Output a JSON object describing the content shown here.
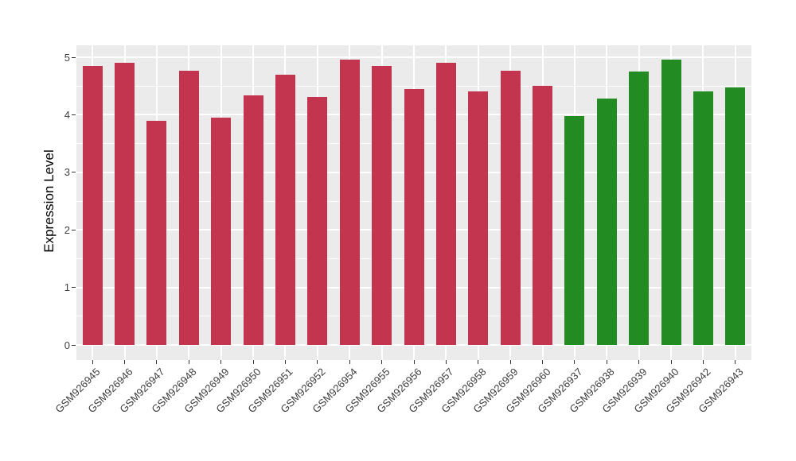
{
  "figure": {
    "background": "#FFFFFF",
    "panel_background": "#EBEBEB",
    "grid_color": "#FFFFFF",
    "axis_text_color": "#404040",
    "tick_mark_color": "#333333",
    "red_bar_color": "#C3344F",
    "green_bar_color": "#228B22"
  },
  "chart_data": {
    "type": "bar",
    "title": "",
    "xlabel": "",
    "ylabel": "Expression Level",
    "ylim": [
      -0.26,
      5.21
    ],
    "yticks": [
      0,
      1,
      2,
      3,
      4,
      5
    ],
    "yminorticks": [
      0.5,
      1.5,
      2.5,
      3.5,
      4.5
    ],
    "grid": true,
    "legend_position": "none",
    "bars": [
      {
        "label": "GSM926945",
        "value": 4.85,
        "color": "#C3344F"
      },
      {
        "label": "GSM926946",
        "value": 4.9,
        "color": "#C3344F"
      },
      {
        "label": "GSM926947",
        "value": 3.89,
        "color": "#C3344F"
      },
      {
        "label": "GSM926948",
        "value": 4.77,
        "color": "#C3344F"
      },
      {
        "label": "GSM926949",
        "value": 3.95,
        "color": "#C3344F"
      },
      {
        "label": "GSM926950",
        "value": 4.34,
        "color": "#C3344F"
      },
      {
        "label": "GSM926951",
        "value": 4.69,
        "color": "#C3344F"
      },
      {
        "label": "GSM926952",
        "value": 4.31,
        "color": "#C3344F"
      },
      {
        "label": "GSM926954",
        "value": 4.96,
        "color": "#C3344F"
      },
      {
        "label": "GSM926955",
        "value": 4.85,
        "color": "#C3344F"
      },
      {
        "label": "GSM926956",
        "value": 4.45,
        "color": "#C3344F"
      },
      {
        "label": "GSM926957",
        "value": 4.91,
        "color": "#C3344F"
      },
      {
        "label": "GSM926958",
        "value": 4.41,
        "color": "#C3344F"
      },
      {
        "label": "GSM926959",
        "value": 4.77,
        "color": "#C3344F"
      },
      {
        "label": "GSM926960",
        "value": 4.5,
        "color": "#C3344F"
      },
      {
        "label": "GSM926937",
        "value": 3.98,
        "color": "#228B22"
      },
      {
        "label": "GSM926938",
        "value": 4.28,
        "color": "#228B22"
      },
      {
        "label": "GSM926939",
        "value": 4.75,
        "color": "#228B22"
      },
      {
        "label": "GSM926940",
        "value": 4.96,
        "color": "#228B22"
      },
      {
        "label": "GSM926942",
        "value": 4.41,
        "color": "#228B22"
      },
      {
        "label": "GSM926943",
        "value": 4.48,
        "color": "#228B22"
      }
    ]
  }
}
